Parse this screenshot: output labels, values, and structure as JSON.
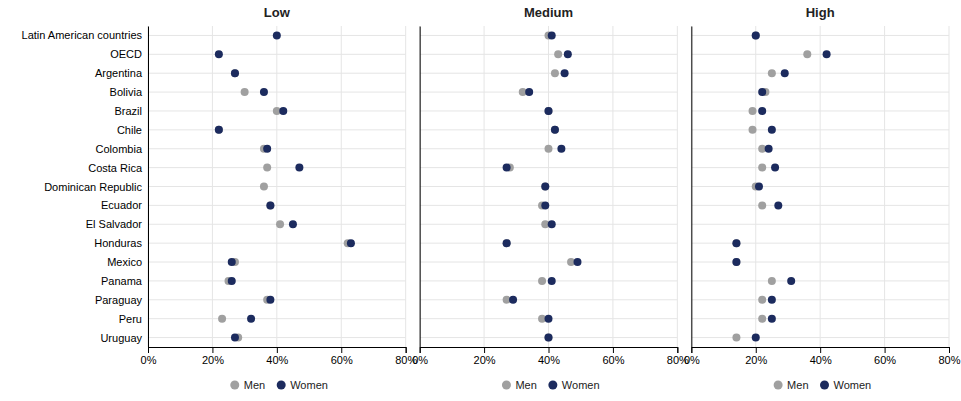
{
  "chart_data": [
    {
      "type": "dot",
      "title": "Low",
      "orientation": "horizontal",
      "grid": true,
      "legend": "bottom",
      "categories": [
        "Latin American countries",
        "OECD",
        "Argentina",
        "Bolivia",
        "Brazil",
        "Chile",
        "Colombia",
        "Costa Rica",
        "Dominican Republic",
        "Ecuador",
        "El Salvador",
        "Honduras",
        "Mexico",
        "Panama",
        "Paraguay",
        "Peru",
        "Uruguay"
      ],
      "series": [
        {
          "name": "Men",
          "color": "#a0a0a0",
          "values": [
            null,
            null,
            27,
            30,
            40,
            22,
            36,
            37,
            36,
            38,
            41,
            62,
            27,
            25,
            37,
            23,
            28
          ]
        },
        {
          "name": "Women",
          "color": "#1c2b5e",
          "values": [
            40,
            22,
            27,
            36,
            42,
            22,
            37,
            47,
            null,
            38,
            45,
            63,
            26,
            26,
            38,
            32,
            27
          ]
        }
      ],
      "xlim": [
        0,
        80
      ],
      "xticks": [
        {
          "value": 0,
          "label": "0%"
        },
        {
          "value": 20,
          "label": "20%"
        },
        {
          "value": 40,
          "label": "40%"
        },
        {
          "value": 60,
          "label": "60%"
        },
        {
          "value": 80,
          "label": "80%"
        }
      ]
    },
    {
      "type": "dot",
      "title": "Medium",
      "orientation": "horizontal",
      "grid": true,
      "legend": "bottom",
      "tick_labels": "x",
      "categories": [
        "Latin American countries",
        "OECD",
        "Argentina",
        "Bolivia",
        "Brazil",
        "Chile",
        "Colombia",
        "Costa Rica",
        "Dominican Republic",
        "Ecuador",
        "El Salvador",
        "Honduras",
        "Mexico",
        "Panama",
        "Paraguay",
        "Peru",
        "Uruguay"
      ],
      "series": [
        {
          "name": "Men",
          "color": "#a0a0a0",
          "values": [
            40,
            43,
            42,
            32,
            40,
            42,
            40,
            28,
            39,
            38,
            39,
            27,
            47,
            38,
            27,
            38,
            40
          ]
        },
        {
          "name": "Women",
          "color": "#1c2b5e",
          "values": [
            41,
            46,
            45,
            34,
            40,
            42,
            44,
            27,
            39,
            39,
            41,
            27,
            49,
            41,
            29,
            40,
            40
          ]
        }
      ],
      "xlim": [
        0,
        80
      ],
      "xticks": [
        {
          "value": 0,
          "label": "0%"
        },
        {
          "value": 20,
          "label": "20%"
        },
        {
          "value": 40,
          "label": "40%"
        },
        {
          "value": 60,
          "label": "60%"
        },
        {
          "value": 80,
          "label": "80%"
        }
      ]
    },
    {
      "type": "dot",
      "title": "High",
      "orientation": "horizontal",
      "grid": true,
      "legend": "bottom",
      "tick_labels": "x",
      "categories": [
        "Latin American countries",
        "OECD",
        "Argentina",
        "Bolivia",
        "Brazil",
        "Chile",
        "Colombia",
        "Costa Rica",
        "Dominican Republic",
        "Ecuador",
        "El Salvador",
        "Honduras",
        "Mexico",
        "Panama",
        "Paraguay",
        "Peru",
        "Uruguay"
      ],
      "series": [
        {
          "name": "Men",
          "color": "#a0a0a0",
          "values": [
            20,
            36,
            25,
            23,
            19,
            19,
            22,
            22,
            20,
            22,
            null,
            14,
            14,
            25,
            22,
            22,
            14
          ]
        },
        {
          "name": "Women",
          "color": "#1c2b5e",
          "values": [
            20,
            42,
            29,
            22,
            22,
            25,
            24,
            26,
            21,
            27,
            null,
            14,
            14,
            31,
            25,
            25,
            20
          ]
        }
      ],
      "xlim": [
        0,
        80
      ],
      "xticks": [
        {
          "value": 0,
          "label": "0%"
        },
        {
          "value": 20,
          "label": "20%"
        },
        {
          "value": 40,
          "label": "40%"
        },
        {
          "value": 60,
          "label": "60%"
        },
        {
          "value": 80,
          "label": "80%"
        }
      ]
    }
  ]
}
